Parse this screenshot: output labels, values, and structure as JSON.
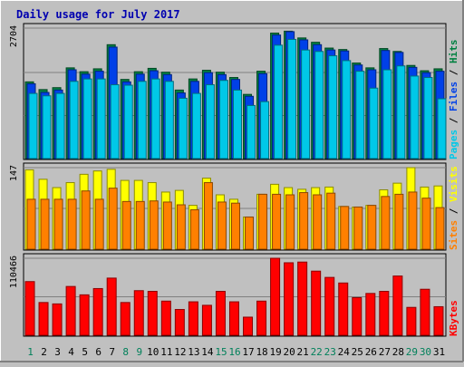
{
  "title": "Daily usage for July 2017",
  "chart_data": {
    "type": "bar",
    "title": "Daily usage for July 2017",
    "categories": [
      "1",
      "2",
      "3",
      "4",
      "5",
      "6",
      "7",
      "8",
      "9",
      "10",
      "11",
      "12",
      "13",
      "14",
      "15",
      "16",
      "17",
      "18",
      "19",
      "20",
      "21",
      "22",
      "23",
      "24",
      "25",
      "26",
      "27",
      "28",
      "29",
      "30",
      "31"
    ],
    "weekend_days": [
      1,
      8,
      9,
      15,
      16,
      22,
      23,
      29,
      30
    ],
    "panels": [
      {
        "id": "top",
        "max_label": "2704",
        "ymax": 2704,
        "legend": [
          {
            "text": "Pages",
            "color": "#00c8e8"
          },
          {
            "text": "Files",
            "color": "#0040e8"
          },
          {
            "text": "Hits",
            "color": "#008040"
          }
        ],
        "series": [
          {
            "name": "Hits",
            "color": "#008040",
            "values": [
              1590,
              1430,
              1470,
              1880,
              1800,
              1860,
              2360,
              1640,
              1800,
              1870,
              1790,
              1420,
              1650,
              1830,
              1790,
              1680,
              1330,
              1810,
              2600,
              2640,
              2500,
              2410,
              2290,
              2260,
              1980,
              1880,
              2280,
              2220,
              1930,
              1820,
              1860
            ]
          },
          {
            "name": "Files",
            "color": "#0040e8",
            "values": [
              1550,
              1370,
              1420,
              1840,
              1750,
              1810,
              2310,
              1590,
              1750,
              1820,
              1740,
              1360,
              1600,
              1780,
              1740,
              1640,
              1290,
              1760,
              2560,
              2630,
              2460,
              2360,
              2250,
              2230,
              1940,
              1840,
              2240,
              2200,
              1890,
              1780,
              1810
            ]
          },
          {
            "name": "Pages",
            "color": "#00c8e8",
            "values": [
              1350,
              1300,
              1350,
              1600,
              1650,
              1650,
              1530,
              1520,
              1600,
              1650,
              1600,
              1250,
              1350,
              1530,
              1620,
              1420,
              1100,
              1180,
              2350,
              2470,
              2250,
              2220,
              2130,
              2030,
              1810,
              1460,
              1840,
              1920,
              1710,
              1680,
              1240
            ]
          }
        ]
      },
      {
        "id": "middle",
        "max_label": "147",
        "ymax": 147,
        "legend": [
          {
            "text": "Sites",
            "color": "#ff8000"
          },
          {
            "text": "Visits",
            "color": "#ffff00"
          }
        ],
        "series": [
          {
            "name": "Visits",
            "color": "#ffff00",
            "values": [
              143,
              126,
              111,
              120,
              135,
              141,
              144,
              124,
              124,
              120,
              103,
              106,
              79,
              128,
              98,
              90,
              58,
              99,
              117,
              111,
              108,
              111,
              112,
              77,
              76,
              79,
              107,
              119,
              147,
              112,
              114
            ]
          },
          {
            "name": "Sites",
            "color": "#ff8000",
            "values": [
              90,
              90,
              90,
              90,
              105,
              90,
              110,
              86,
              86,
              87,
              85,
              80,
              71,
              120,
              85,
              83,
              58,
              99,
              99,
              98,
              102,
              98,
              101,
              77,
              76,
              79,
              95,
              99,
              103,
              92,
              75
            ]
          }
        ]
      },
      {
        "id": "bottom",
        "max_label": "110466",
        "ymax": 110466,
        "legend": [
          {
            "text": "KBytes",
            "color": "#ff0000"
          }
        ],
        "series": [
          {
            "name": "KBytes",
            "color": "#ff0000",
            "values": [
              77000,
              47000,
              45000,
              70000,
              58000,
              67000,
              82000,
              47000,
              64000,
              63000,
              49000,
              37000,
              48000,
              43000,
              63000,
              48000,
              26000,
              49000,
              110466,
              104000,
              105000,
              92000,
              83000,
              75000,
              54000,
              60000,
              63000,
              85000,
              40000,
              66000,
              41000
            ]
          }
        ]
      }
    ]
  }
}
